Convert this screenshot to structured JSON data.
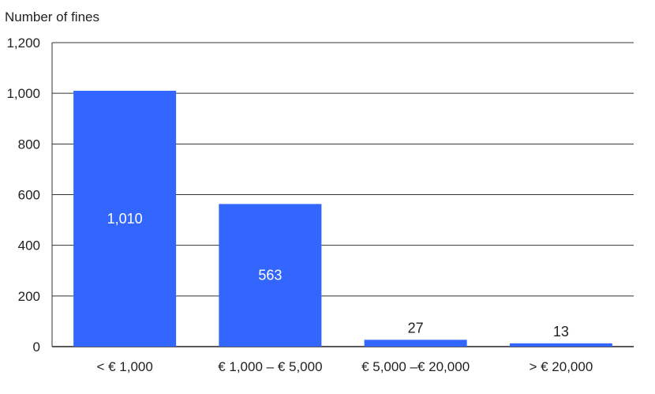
{
  "chart_data": {
    "type": "bar",
    "ylabel": "Number of fines",
    "categories": [
      "< € 1,000",
      "€ 1,000 – € 5,000",
      "€ 5,000 –€ 20,000",
      "> € 20,000"
    ],
    "values": [
      1010,
      563,
      27,
      13
    ],
    "data_labels": [
      "1,010",
      "563",
      "27",
      "13"
    ],
    "ylim": [
      0,
      1200
    ],
    "yticks": [
      0,
      200,
      400,
      600,
      800,
      1000,
      1200
    ],
    "ytick_labels": [
      "0",
      "200",
      "400",
      "600",
      "800",
      "1,000",
      "1,200"
    ],
    "grid": true,
    "bar_color": "#3366ff",
    "label_inside_color": "#ffffff",
    "label_outside_color": "#222222"
  }
}
